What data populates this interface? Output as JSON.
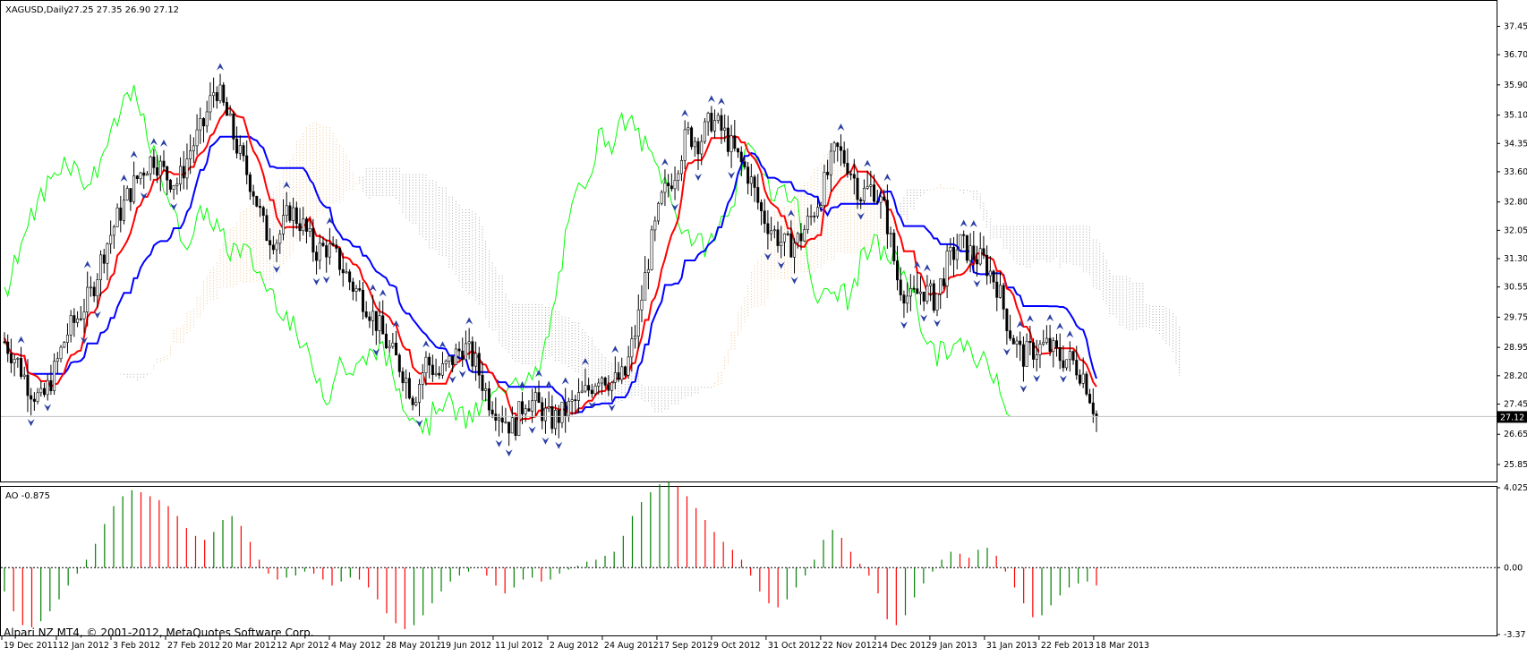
{
  "chart_data": [
    {
      "type": "candlestick",
      "panel": "price",
      "symbol_header": "XAGUSD,Daily",
      "ohlc_header": "27.25 27.35 26.90 27.12",
      "current_price_label": "27.12",
      "ylim": [
        25.4,
        38.1
      ],
      "y_ticks": [
        "37.45",
        "36.70",
        "35.90",
        "35.10",
        "34.35",
        "33.60",
        "32.80",
        "32.05",
        "31.30",
        "30.55",
        "29.75",
        "28.95",
        "28.20",
        "27.45",
        "26.65",
        "25.85"
      ],
      "x_labels": [
        "19 Dec 2011",
        "12 Jan 2012",
        "3 Feb 2012",
        "27 Feb 2012",
        "20 Mar 2012",
        "12 Apr 2012",
        "4 May 2012",
        "28 May 2012",
        "19 Jun 2012",
        "11 Jul 2012",
        "2 Aug 2012",
        "24 Aug 2012",
        "17 Sep 2012",
        "9 Oct 2012",
        "31 Oct 2012",
        "22 Nov 2012",
        "14 Dec 2012",
        "9 Jan 2013",
        "31 Jan 2013",
        "22 Feb 2013",
        "18 Mar 2013"
      ],
      "close_series": [
        29.1,
        28.6,
        27.9,
        27.5,
        28.3,
        29.3,
        29.8,
        30.4,
        31.5,
        32.3,
        33.0,
        33.6,
        34.0,
        33.5,
        33.3,
        34.2,
        34.8,
        35.9,
        35.0,
        34.0,
        33.2,
        32.0,
        31.8,
        32.6,
        32.2,
        31.5,
        31.6,
        31.2,
        30.6,
        30.2,
        29.6,
        28.9,
        28.4,
        27.6,
        28.6,
        28.2,
        28.6,
        29.0,
        28.5,
        27.6,
        27.2,
        26.8,
        27.6,
        27.4,
        27.0,
        27.2,
        27.5,
        27.8,
        28.3,
        28.0,
        28.2,
        29.6,
        31.5,
        32.9,
        33.6,
        34.6,
        34.4,
        35.0,
        34.6,
        34.0,
        33.5,
        32.5,
        32.0,
        31.6,
        31.8,
        32.4,
        33.2,
        34.2,
        33.8,
        33.0,
        33.2,
        32.5,
        30.7,
        30.2,
        30.5,
        30.2,
        31.2,
        31.7,
        31.4,
        31.2,
        30.6,
        29.4,
        28.7,
        28.9,
        29.0,
        28.7,
        28.6,
        28.2,
        27.12
      ],
      "indicators": [
        {
          "name": "tenkan_sen",
          "color": "#ff0000"
        },
        {
          "name": "kijun_sen",
          "color": "#0000ff"
        },
        {
          "name": "chikou_span",
          "color": "#00ff00"
        },
        {
          "name": "senkou_span_a_cloud",
          "color": "#e8b472"
        },
        {
          "name": "senkou_span_b_cloud",
          "color": "#8c8c8c"
        }
      ],
      "fractal_color": "#2a3fa3",
      "grid": false
    },
    {
      "type": "bar",
      "panel": "awesome_oscillator",
      "header": "AO -0.875",
      "ylim": [
        -3.37,
        4.025
      ],
      "y_ticks": [
        "4.025",
        "0.00",
        "-3.37"
      ],
      "values": [
        -1.2,
        -2.2,
        -2.9,
        -3.0,
        -2.7,
        -2.2,
        -1.6,
        -0.9,
        -0.3,
        0.4,
        1.2,
        2.2,
        3.1,
        3.6,
        3.9,
        3.8,
        3.6,
        3.4,
        3.1,
        2.6,
        2.0,
        1.6,
        1.4,
        1.8,
        2.4,
        2.6,
        2.1,
        1.3,
        0.4,
        -0.3,
        -0.6,
        -0.5,
        -0.4,
        -0.2,
        -0.3,
        -0.6,
        -0.9,
        -0.7,
        -0.5,
        -0.6,
        -1.0,
        -1.6,
        -2.3,
        -2.8,
        -3.1,
        -2.9,
        -2.4,
        -1.8,
        -1.2,
        -0.7,
        -0.4,
        -0.2,
        0.0,
        -0.4,
        -0.9,
        -1.3,
        -1.0,
        -0.6,
        -0.5,
        -0.7,
        -0.6,
        -0.3,
        -0.1,
        0.1,
        0.3,
        0.4,
        0.6,
        0.8,
        1.6,
        2.6,
        3.3,
        3.8,
        4.2,
        4.3,
        4.1,
        3.6,
        3.0,
        2.4,
        1.8,
        1.3,
        0.9,
        0.4,
        -0.4,
        -1.2,
        -1.8,
        -2.0,
        -1.6,
        -1.0,
        -0.4,
        0.4,
        1.4,
        1.9,
        1.5,
        0.8,
        0.2,
        -0.4,
        -1.3,
        -2.6,
        -2.9,
        -2.4,
        -1.5,
        -0.8,
        -0.2,
        0.4,
        0.8,
        0.7,
        0.5,
        0.9,
        1.0,
        0.6,
        -0.2,
        -1.0,
        -1.8,
        -2.5,
        -2.4,
        -1.9,
        -1.4,
        -1.0,
        -0.8,
        -0.7,
        -0.9
      ]
    }
  ],
  "footer": {
    "copyright": "Alpari NZ MT4, © 2001-2012, MetaQuotes Software Corp."
  },
  "colors": {
    "up_bar": "#008000",
    "down_bar": "#ff0000",
    "axis": "#000000",
    "price_line": "#c0c0c0"
  }
}
